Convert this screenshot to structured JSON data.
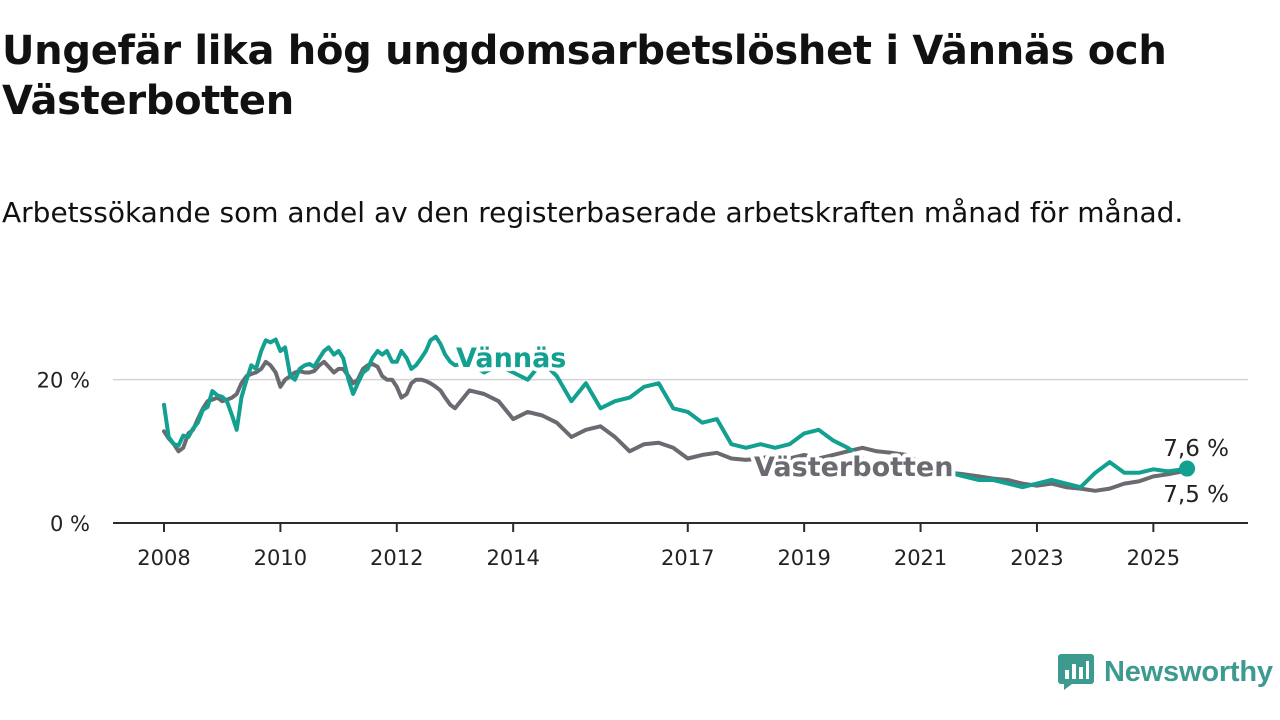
{
  "title": "Ungefär lika hög ungdomsarbetslöshet i Vännäs och Västerbotten",
  "subtitle": "Arbetssökande som andel av den registerbaserade arbetskraften månad för månad.",
  "brand": {
    "name": "Newsworthy",
    "color": "#3c9a91",
    "icon": "newsworthy-logo-icon"
  },
  "chart_data": {
    "type": "line",
    "ylim": [
      0,
      30
    ],
    "yticks": [
      0,
      20
    ],
    "ytick_labels": [
      "0 %",
      "20 %"
    ],
    "xlim": [
      2008.0,
      2025.75
    ],
    "xticks": [
      2008,
      2010,
      2012,
      2014,
      2017,
      2019,
      2021,
      2023,
      2025
    ],
    "xtick_labels": [
      "2008",
      "2010",
      "2012",
      "2014",
      "2017",
      "2019",
      "2021",
      "2023",
      "2025"
    ],
    "grid": "horizontal",
    "legend": "direct labels on lines",
    "series": [
      {
        "name": "Vännäs",
        "color": "#12a090",
        "x": [
          2008.0,
          2008.08,
          2008.17,
          2008.25,
          2008.33,
          2008.42,
          2008.5,
          2008.58,
          2008.67,
          2008.75,
          2008.83,
          2008.92,
          2009.0,
          2009.08,
          2009.17,
          2009.25,
          2009.33,
          2009.42,
          2009.5,
          2009.58,
          2009.67,
          2009.75,
          2009.83,
          2009.92,
          2010.0,
          2010.08,
          2010.17,
          2010.25,
          2010.33,
          2010.42,
          2010.5,
          2010.58,
          2010.67,
          2010.75,
          2010.83,
          2010.92,
          2011.0,
          2011.08,
          2011.17,
          2011.25,
          2011.33,
          2011.42,
          2011.5,
          2011.58,
          2011.67,
          2011.75,
          2011.83,
          2011.92,
          2012.0,
          2012.08,
          2012.17,
          2012.25,
          2012.33,
          2012.42,
          2012.5,
          2012.58,
          2012.67,
          2012.75,
          2012.83,
          2012.92,
          2013.0,
          2013.25,
          2013.5,
          2013.75,
          2014.0,
          2014.25,
          2014.5,
          2014.75,
          2015.0,
          2015.25,
          2015.5,
          2015.75,
          2016.0,
          2016.25,
          2016.5,
          2016.75,
          2017.0,
          2017.25,
          2017.5,
          2017.75,
          2018.0,
          2018.25,
          2018.5,
          2018.75,
          2019.0,
          2019.25,
          2019.5,
          2019.75,
          2020.0,
          2020.25,
          2020.5,
          2020.75,
          2021.0,
          2021.25,
          2021.5,
          2021.75,
          2022.0,
          2022.25,
          2022.5,
          2022.75,
          2023.0,
          2023.25,
          2023.5,
          2023.75,
          2024.0,
          2024.25,
          2024.5,
          2024.75,
          2025.0,
          2025.25,
          2025.5,
          2025.58
        ],
        "values": [
          16.5,
          12.0,
          11.0,
          10.8,
          12.2,
          12.0,
          13.2,
          14.0,
          15.8,
          16.2,
          18.4,
          17.8,
          17.6,
          17.0,
          15.0,
          13.0,
          17.5,
          20.0,
          22.0,
          21.5,
          24.0,
          25.5,
          25.2,
          25.6,
          24.0,
          24.5,
          20.5,
          20.0,
          21.5,
          22.0,
          22.2,
          21.8,
          23.0,
          24.0,
          24.5,
          23.5,
          24.0,
          23.0,
          20.0,
          18.0,
          19.5,
          21.0,
          21.5,
          23.0,
          24.0,
          23.5,
          24.0,
          22.5,
          22.5,
          24.0,
          23.0,
          21.5,
          22.0,
          23.0,
          24.0,
          25.5,
          26.0,
          25.0,
          23.5,
          22.5,
          22.0,
          22.5,
          21.0,
          22.0,
          21.0,
          20.0,
          22.5,
          20.5,
          17.0,
          19.5,
          16.0,
          17.0,
          17.5,
          19.0,
          19.5,
          16.0,
          15.5,
          14.0,
          14.5,
          11.0,
          10.5,
          11.0,
          10.5,
          11.0,
          12.5,
          13.0,
          11.5,
          10.5,
          9.0,
          6.5,
          7.0,
          7.5,
          7.5,
          8.5,
          7.0,
          6.5,
          6.0,
          6.0,
          5.5,
          5.0,
          5.5,
          6.0,
          5.5,
          5.0,
          7.0,
          8.5,
          7.0,
          7.0,
          7.5,
          7.2,
          7.5,
          7.6
        ]
      },
      {
        "name": "Västerbotten",
        "color": "#6a6a70",
        "x": [
          2008.0,
          2008.08,
          2008.17,
          2008.25,
          2008.33,
          2008.42,
          2008.5,
          2008.58,
          2008.67,
          2008.75,
          2008.83,
          2008.92,
          2009.0,
          2009.08,
          2009.17,
          2009.25,
          2009.33,
          2009.42,
          2009.5,
          2009.58,
          2009.67,
          2009.75,
          2009.83,
          2009.92,
          2010.0,
          2010.08,
          2010.17,
          2010.25,
          2010.33,
          2010.42,
          2010.5,
          2010.58,
          2010.67,
          2010.75,
          2010.83,
          2010.92,
          2011.0,
          2011.08,
          2011.17,
          2011.25,
          2011.33,
          2011.42,
          2011.5,
          2011.58,
          2011.67,
          2011.75,
          2011.83,
          2011.92,
          2012.0,
          2012.08,
          2012.17,
          2012.25,
          2012.33,
          2012.42,
          2012.5,
          2012.58,
          2012.67,
          2012.75,
          2012.83,
          2012.92,
          2013.0,
          2013.25,
          2013.5,
          2013.75,
          2014.0,
          2014.25,
          2014.5,
          2014.75,
          2015.0,
          2015.25,
          2015.5,
          2015.75,
          2016.0,
          2016.25,
          2016.5,
          2016.75,
          2017.0,
          2017.25,
          2017.5,
          2017.75,
          2018.0,
          2018.25,
          2018.5,
          2018.75,
          2019.0,
          2019.25,
          2019.5,
          2019.75,
          2020.0,
          2020.25,
          2020.5,
          2020.75,
          2021.0,
          2021.25,
          2021.5,
          2021.75,
          2022.0,
          2022.25,
          2022.5,
          2022.75,
          2023.0,
          2023.25,
          2023.5,
          2023.75,
          2024.0,
          2024.25,
          2024.5,
          2024.75,
          2025.0,
          2025.25,
          2025.5,
          2025.58
        ],
        "values": [
          12.8,
          11.8,
          11.0,
          10.0,
          10.5,
          12.5,
          13.0,
          14.5,
          16.0,
          17.0,
          17.2,
          17.5,
          17.0,
          17.2,
          17.5,
          18.0,
          19.5,
          20.5,
          20.8,
          21.0,
          21.5,
          22.5,
          22.0,
          21.0,
          19.0,
          20.0,
          20.5,
          21.0,
          21.2,
          21.0,
          21.0,
          21.2,
          22.0,
          22.5,
          21.8,
          21.0,
          21.5,
          21.5,
          20.5,
          19.5,
          20.0,
          21.5,
          22.0,
          22.2,
          21.8,
          20.5,
          20.0,
          20.0,
          19.0,
          17.5,
          18.0,
          19.5,
          20.0,
          20.0,
          19.8,
          19.5,
          19.0,
          18.5,
          17.5,
          16.5,
          16.0,
          18.5,
          18.0,
          17.0,
          14.5,
          15.5,
          15.0,
          14.0,
          12.0,
          13.0,
          13.5,
          12.0,
          10.0,
          11.0,
          11.2,
          10.5,
          9.0,
          9.5,
          9.8,
          9.0,
          8.8,
          9.0,
          9.5,
          9.0,
          9.5,
          9.0,
          9.5,
          10.0,
          10.5,
          10.0,
          9.8,
          9.5,
          8.5,
          7.5,
          7.0,
          6.8,
          6.5,
          6.2,
          6.0,
          5.5,
          5.2,
          5.5,
          5.0,
          4.8,
          4.5,
          4.8,
          5.5,
          5.8,
          6.5,
          6.8,
          7.2,
          7.5
        ]
      }
    ],
    "series_labels": [
      "Vännäs",
      "Västerbotten"
    ],
    "end_labels": {
      "Vännäs": "7,6 %",
      "Västerbotten": "7,5 %"
    }
  }
}
